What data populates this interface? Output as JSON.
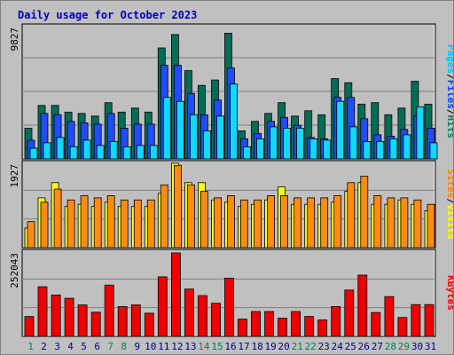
{
  "chart_data": {
    "type": "bar",
    "title": "Daily usage for October 2023",
    "categories": [
      "1",
      "2",
      "3",
      "4",
      "5",
      "6",
      "7",
      "8",
      "9",
      "10",
      "11",
      "12",
      "13",
      "14",
      "15",
      "16",
      "17",
      "18",
      "19",
      "20",
      "21",
      "22",
      "23",
      "24",
      "25",
      "26",
      "27",
      "28",
      "29",
      "30",
      "31"
    ],
    "weekend_days": [
      "1",
      "7",
      "8",
      "14",
      "15",
      "21",
      "22",
      "28",
      "29"
    ],
    "panels": [
      {
        "id": "top",
        "max_label": "9827",
        "ylim": [
          0,
          9827
        ],
        "legend": [
          {
            "text": "Pages",
            "color": "#00c0ff"
          },
          {
            "text": "Files",
            "color": "#0040ff"
          },
          {
            "text": "Hits",
            "color": "#008060"
          }
        ],
        "separators": [
          "/",
          "/"
        ],
        "series": [
          {
            "name": "Hits",
            "color": "#006e56",
            "values": [
              2300,
              4000,
              4000,
              3500,
              3400,
              3200,
              4200,
              3500,
              3800,
              3500,
              8300,
              9300,
              6600,
              5500,
              5900,
              9400,
              2100,
              2800,
              3400,
              4200,
              3200,
              3600,
              3300,
              6000,
              5700,
              4100,
              4200,
              3300,
              3800,
              5800,
              4100
            ]
          },
          {
            "name": "Files",
            "color": "#1e4cff",
            "values": [
              1400,
              3400,
              3300,
              2800,
              2700,
              2600,
              3400,
              2300,
              2600,
              2600,
              7000,
              7000,
              4900,
              3300,
              4400,
              6800,
              1500,
              1900,
              2800,
              3100,
              2500,
              1600,
              1500,
              4600,
              4600,
              3000,
              1800,
              1700,
              2200,
              3200,
              2300
            ]
          },
          {
            "name": "Pages",
            "color": "#10d8ff",
            "values": [
              800,
              1200,
              1600,
              900,
              1400,
              1000,
              1300,
              900,
              1000,
              1000,
              4600,
              4300,
              3300,
              2100,
              3200,
              5600,
              900,
              1500,
              2400,
              2300,
              2300,
              1500,
              1400,
              4300,
              2400,
              1300,
              1300,
              1500,
              1800,
              3900,
              1200
            ]
          }
        ]
      },
      {
        "id": "mid",
        "max_label": "1927",
        "ylim": [
          0,
          1927
        ],
        "legend": [
          {
            "text": "Sites",
            "color": "#ff8000"
          },
          {
            "text": "Visits",
            "color": "#ffff00"
          }
        ],
        "separators": [
          "/"
        ],
        "series": [
          {
            "name": "Visits",
            "color": "#ffff20",
            "values": [
              450,
              1150,
              1500,
              950,
              1000,
              950,
              1050,
              950,
              950,
              950,
              1250,
              1950,
              1500,
              1500,
              1100,
              1050,
              950,
              1000,
              1100,
              1400,
              1000,
              1000,
              1000,
              1050,
              1300,
              1500,
              1000,
              1000,
              1100,
              1000,
              850
            ]
          },
          {
            "name": "Sites",
            "color": "#ff8c10",
            "values": [
              600,
              1050,
              1350,
              1100,
              1200,
              1150,
              1200,
              1100,
              1100,
              1100,
              1450,
              1900,
              1450,
              1300,
              1150,
              1200,
              1100,
              1100,
              1200,
              1200,
              1150,
              1150,
              1150,
              1200,
              1500,
              1650,
              1200,
              1150,
              1150,
              1100,
              1000
            ]
          }
        ]
      },
      {
        "id": "bottom",
        "max_label": "252043",
        "ylim": [
          0,
          252043
        ],
        "legend": [
          {
            "text": "KBytes",
            "color": "#ff0000"
          }
        ],
        "separators": [],
        "series": [
          {
            "name": "KBytes",
            "color": "#ee0000",
            "values": [
              60000,
              150000,
              125000,
              115000,
              95000,
              73000,
              155000,
              90000,
              95000,
              70000,
              180000,
              252000,
              143000,
              123000,
              100000,
              176000,
              52000,
              75000,
              75000,
              55000,
              75000,
              60000,
              50000,
              90000,
              140000,
              185000,
              72000,
              120000,
              57000,
              96000,
              96000
            ]
          }
        ]
      }
    ]
  }
}
